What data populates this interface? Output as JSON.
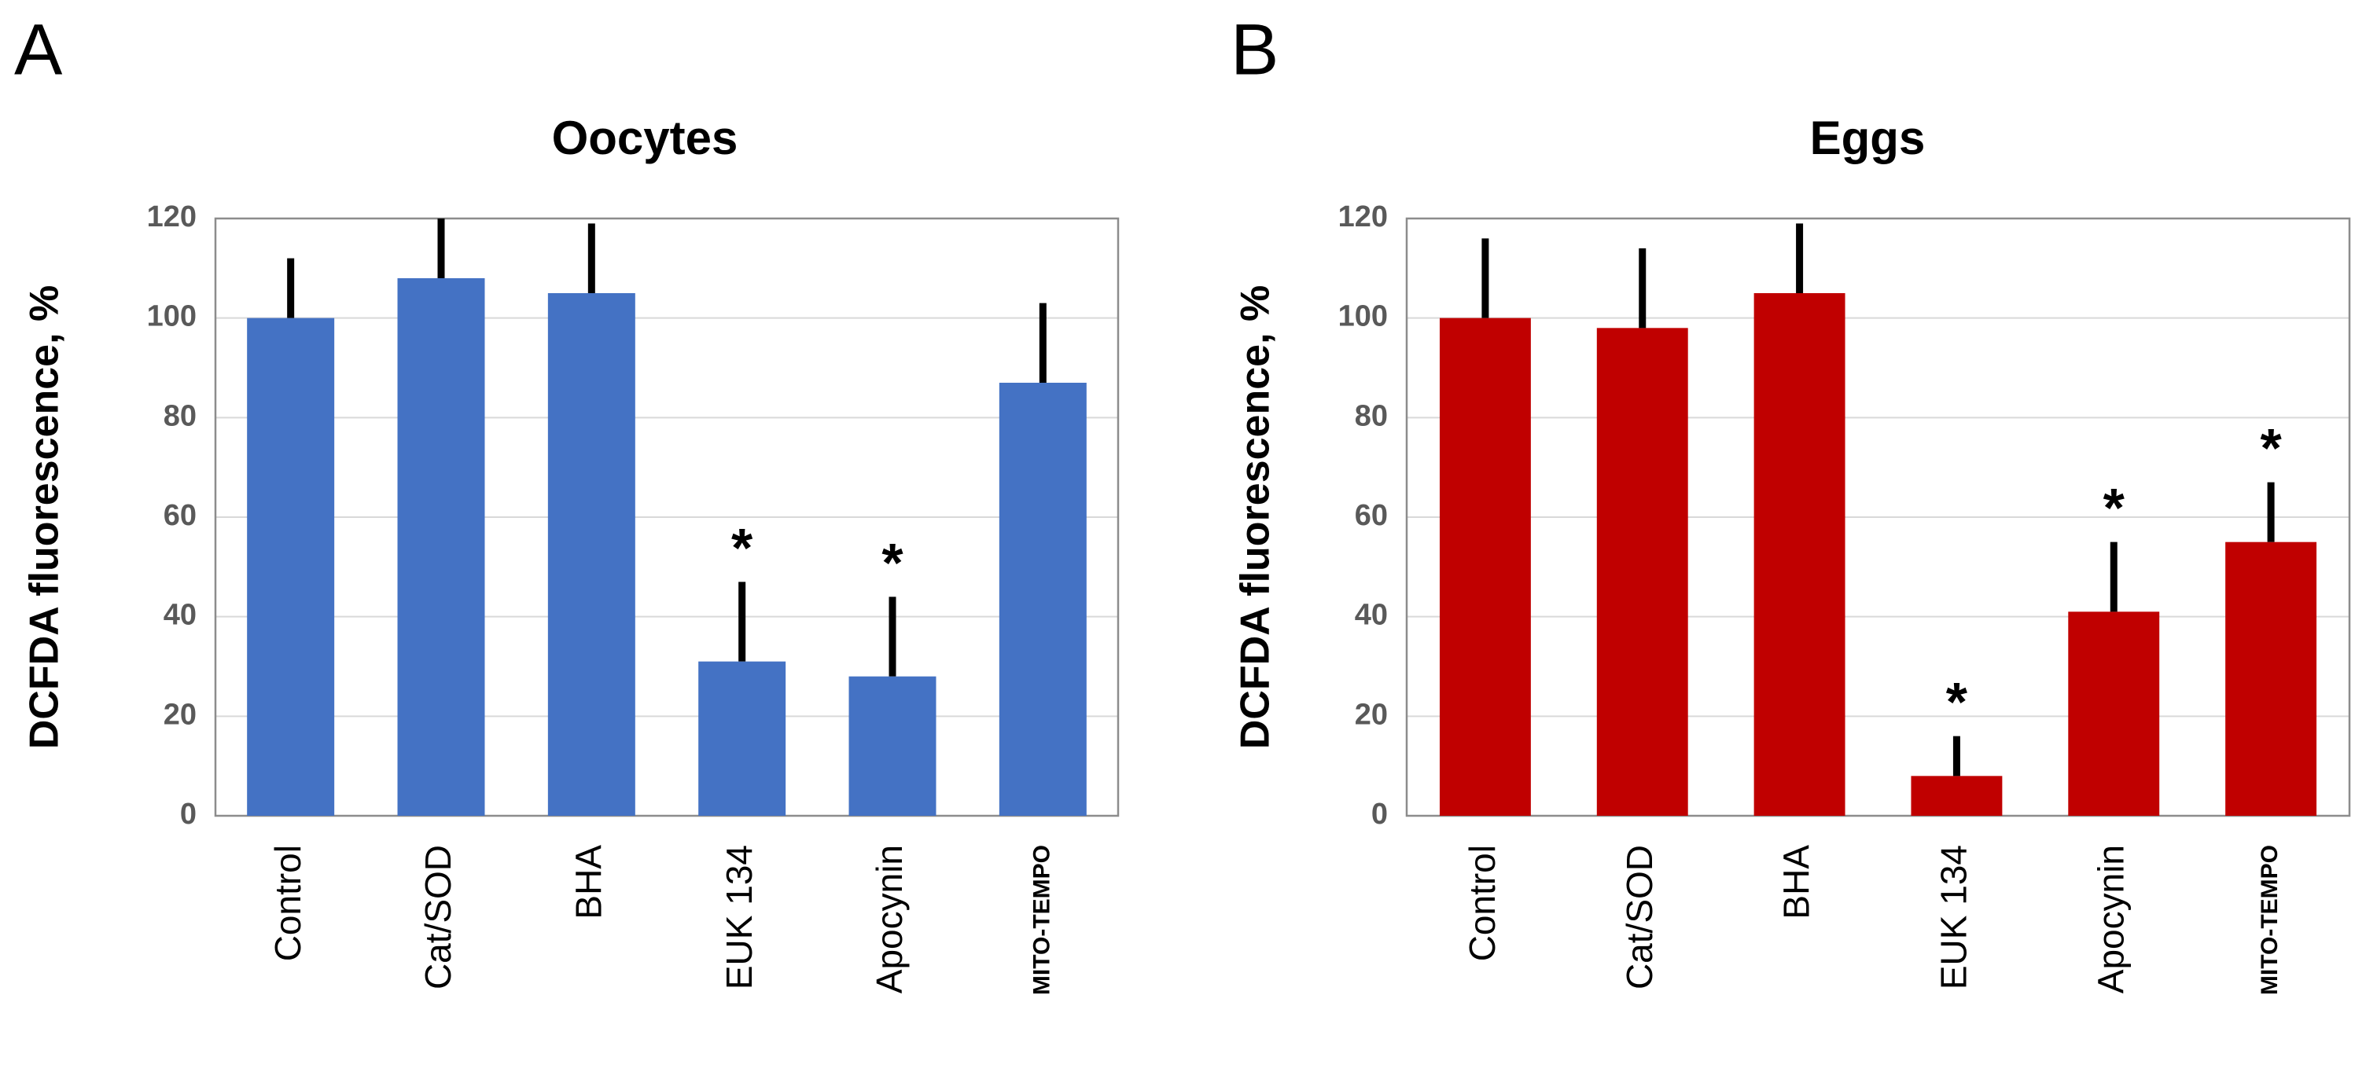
{
  "chart_data": [
    {
      "type": "bar",
      "panel": "A",
      "title": "Oocytes",
      "y_label": "DCFDA fluorescence, %",
      "categories": [
        "Control",
        "Cat/SOD",
        "BHA",
        "EUK 134",
        "Apocynin",
        "MITO-TEMPO"
      ],
      "values": [
        100,
        108,
        105,
        31,
        28,
        87
      ],
      "errors": [
        12,
        12,
        14,
        16,
        16,
        16
      ],
      "color": "#4472c4",
      "ylim": [
        0,
        120
      ],
      "yticks": [
        0,
        20,
        40,
        60,
        80,
        100,
        120
      ],
      "grid": true,
      "annotations": [
        {
          "text": "*",
          "category": "EUK 134"
        },
        {
          "text": "*",
          "category": "Apocynin"
        }
      ]
    },
    {
      "type": "bar",
      "panel": "B",
      "title": "Eggs",
      "y_label": "DCFDA fluorescence, %",
      "categories": [
        "Control",
        "Cat/SOD",
        "BHA",
        "EUK 134",
        "Apocynin",
        "MITO-TEMPO"
      ],
      "values": [
        100,
        98,
        105,
        8,
        41,
        55
      ],
      "errors": [
        16,
        16,
        14,
        8,
        14,
        12
      ],
      "color": "#c00000",
      "ylim": [
        0,
        120
      ],
      "yticks": [
        0,
        20,
        40,
        60,
        80,
        100,
        120
      ],
      "grid": true,
      "annotations": [
        {
          "text": "*",
          "category": "EUK 134"
        },
        {
          "text": "*",
          "category": "Apocynin"
        },
        {
          "text": "*",
          "category": "MITO-TEMPO"
        }
      ]
    }
  ]
}
